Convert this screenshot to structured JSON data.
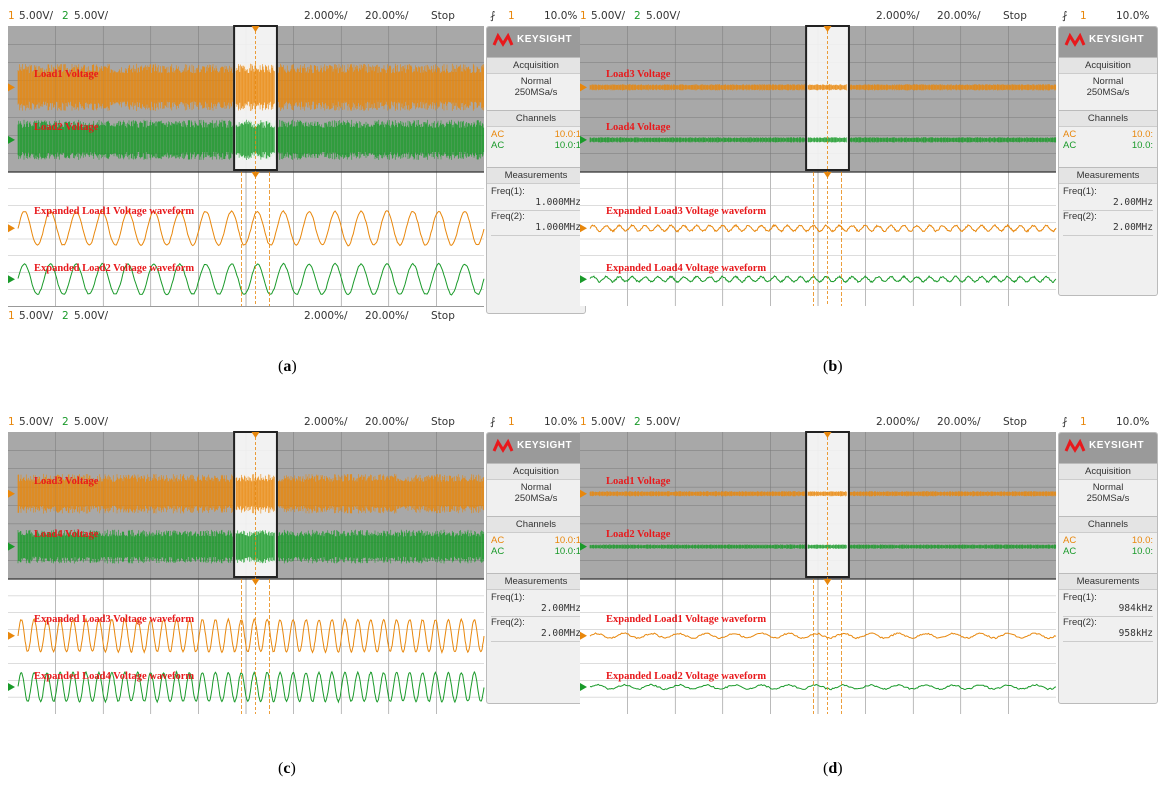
{
  "colors": {
    "ch1": "#e8870c",
    "ch2": "#1a9a2a",
    "label": "#e8191c",
    "grey": "#a8a8a8"
  },
  "panels": [
    {
      "id": "a",
      "caption": "a",
      "topbar": {
        "ch1_num": "1",
        "ch1_scale": "5.00V/",
        "ch2_num": "2",
        "ch2_scale": "5.00V/",
        "time1": "2.000%/",
        "time2": "20.00%/",
        "state": "Stop"
      },
      "trigger": {
        "icon": "trigger-edge-icon",
        "num": "1",
        "level": "10.0%"
      },
      "bottombar": true,
      "brand": "KEYSIGHT",
      "acquisition": {
        "title": "Acquisition",
        "mode": "Normal",
        "rate": "250MSa/s"
      },
      "channels": {
        "title": "Channels",
        "ch1_coupling": "AC",
        "ch1_probe": "10.0:1",
        "ch2_coupling": "AC",
        "ch2_probe": "10.0:1"
      },
      "measurements": {
        "title": "Measurements",
        "freq1_label": "Freq(1):",
        "freq1_value": "1.000MHz",
        "freq2_label": "Freq(2):",
        "freq2_value": "1.000MHz"
      },
      "labels": {
        "upper1": "Load1 Voltage",
        "upper2": "Load2 Voltage",
        "lower1": "Expanded Load1 Voltage waveform",
        "lower2": "Expanded Load2 Voltage waveform"
      },
      "wave": {
        "upper_amp": 0.9,
        "lower_amp": 0.9,
        "cycles": 18
      }
    },
    {
      "id": "b",
      "caption": "b",
      "topbar": {
        "ch1_num": "1",
        "ch1_scale": "5.00V/",
        "ch2_num": "2",
        "ch2_scale": "5.00V/",
        "time1": "2.000%/",
        "time2": "20.00%/",
        "state": "Stop"
      },
      "trigger": {
        "icon": "trigger-edge-icon",
        "num": "1",
        "level": "10.0%"
      },
      "bottombar": false,
      "brand": "KEYSIGHT",
      "acquisition": {
        "title": "Acquisition",
        "mode": "Normal",
        "rate": "250MSa/s"
      },
      "channels": {
        "title": "Channels",
        "ch1_coupling": "AC",
        "ch1_probe": "10.0:",
        "ch2_coupling": "AC",
        "ch2_probe": "10.0:"
      },
      "measurements": {
        "title": "Measurements",
        "freq1_label": "Freq(1):",
        "freq1_value": "2.00MHz",
        "freq2_label": "Freq(2):",
        "freq2_value": "2.00MHz"
      },
      "labels": {
        "upper1": "Load3 Voltage",
        "upper2": "Load4 Voltage",
        "lower1": "Expanded Load3 Voltage waveform",
        "lower2": "Expanded Load4 Voltage waveform"
      },
      "wave": {
        "upper_amp": 0.12,
        "lower_amp": 0.15,
        "cycles": 36
      }
    },
    {
      "id": "c",
      "caption": "c",
      "topbar": {
        "ch1_num": "1",
        "ch1_scale": "5.00V/",
        "ch2_num": "2",
        "ch2_scale": "5.00V/",
        "time1": "2.000%/",
        "time2": "20.00%/",
        "state": "Stop"
      },
      "trigger": {
        "icon": "trigger-edge-icon",
        "num": "1",
        "level": "10.0%"
      },
      "bottombar": false,
      "brand": "KEYSIGHT",
      "acquisition": {
        "title": "Acquisition",
        "mode": "Normal",
        "rate": "250MSa/s"
      },
      "channels": {
        "title": "Channels",
        "ch1_coupling": "AC",
        "ch1_probe": "10.0:1",
        "ch2_coupling": "AC",
        "ch2_probe": "10.0:1"
      },
      "measurements": {
        "title": "Measurements",
        "freq1_label": "Freq(1):",
        "freq1_value": "2.00MHz",
        "freq2_label": "Freq(2):",
        "freq2_value": "2.00MHz"
      },
      "labels": {
        "upper1": "Load3 Voltage",
        "upper2": "Load4 Voltage",
        "lower1": "Expanded Load3 Voltage waveform",
        "lower2": "Expanded Load4 Voltage waveform"
      },
      "wave": {
        "upper_amp": 0.75,
        "lower_amp": 0.85,
        "cycles": 36
      }
    },
    {
      "id": "d",
      "caption": "d",
      "topbar": {
        "ch1_num": "1",
        "ch1_scale": "5.00V/",
        "ch2_num": "2",
        "ch2_scale": "5.00V/",
        "time1": "2.000%/",
        "time2": "20.00%/",
        "state": "Stop"
      },
      "trigger": {
        "icon": "trigger-edge-icon",
        "num": "1",
        "level": "10.0%"
      },
      "bottombar": false,
      "brand": "KEYSIGHT",
      "acquisition": {
        "title": "Acquisition",
        "mode": "Normal",
        "rate": "250MSa/s"
      },
      "channels": {
        "title": "Channels",
        "ch1_coupling": "AC",
        "ch1_probe": "10.0:",
        "ch2_coupling": "AC",
        "ch2_probe": "10.0:"
      },
      "measurements": {
        "title": "Measurements",
        "freq1_label": "Freq(1):",
        "freq1_value": "984kHz",
        "freq2_label": "Freq(2):",
        "freq2_value": "958kHz"
      },
      "labels": {
        "upper1": "Load1 Voltage",
        "upper2": "Load2 Voltage",
        "lower1": "Expanded Load1 Voltage waveform",
        "lower2": "Expanded Load2 Voltage waveform"
      },
      "wave": {
        "upper_amp": 0.1,
        "lower_amp": 0.12,
        "cycles": 17
      }
    }
  ]
}
